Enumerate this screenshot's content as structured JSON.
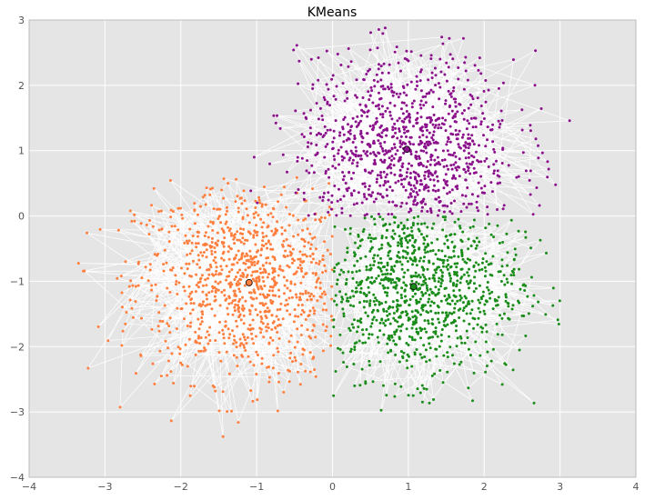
{
  "chart_data": {
    "type": "scatter",
    "title": "KMeans",
    "xlabel": "",
    "ylabel": "",
    "xlim": [
      -4,
      4
    ],
    "ylim": [
      -4,
      3
    ],
    "x_ticks": [
      -4,
      -3,
      -2,
      -1,
      0,
      1,
      2,
      3,
      4
    ],
    "y_ticks": [
      -4,
      -3,
      -2,
      -1,
      0,
      1,
      2,
      3
    ],
    "x_tick_labels": [
      "−4",
      "−3",
      "−2",
      "−1",
      "0",
      "1",
      "2",
      "3",
      "4"
    ],
    "y_tick_labels": [
      "−4",
      "−3",
      "−2",
      "−1",
      "0",
      "1",
      "2",
      "3"
    ],
    "grid": true,
    "legend": "none",
    "background_color": "#e5e5e5",
    "grid_color": "#ffffff",
    "connector_line_color": "#ffffff",
    "series": [
      {
        "color": "#ff7f3f",
        "centroid": [
          -1.1,
          -1.02
        ],
        "spread": 0.75,
        "cluster_bounds": {
          "x": [
            -3.6,
            0.0
          ],
          "y": [
            -3.4,
            0.6
          ]
        },
        "point_count": 1000
      },
      {
        "color": "#1a8c1a",
        "centroid": [
          1.07,
          -1.08
        ],
        "spread": 0.7,
        "cluster_bounds": {
          "x": [
            0.0,
            3.0
          ],
          "y": [
            -3.1,
            0.0
          ]
        },
        "point_count": 1000
      },
      {
        "color": "#8b108b",
        "centroid": [
          0.98,
          1.02
        ],
        "spread": 0.72,
        "cluster_bounds": {
          "x": [
            -1.1,
            3.2
          ],
          "y": [
            0.0,
            2.9
          ]
        },
        "point_count": 1000
      }
    ]
  }
}
